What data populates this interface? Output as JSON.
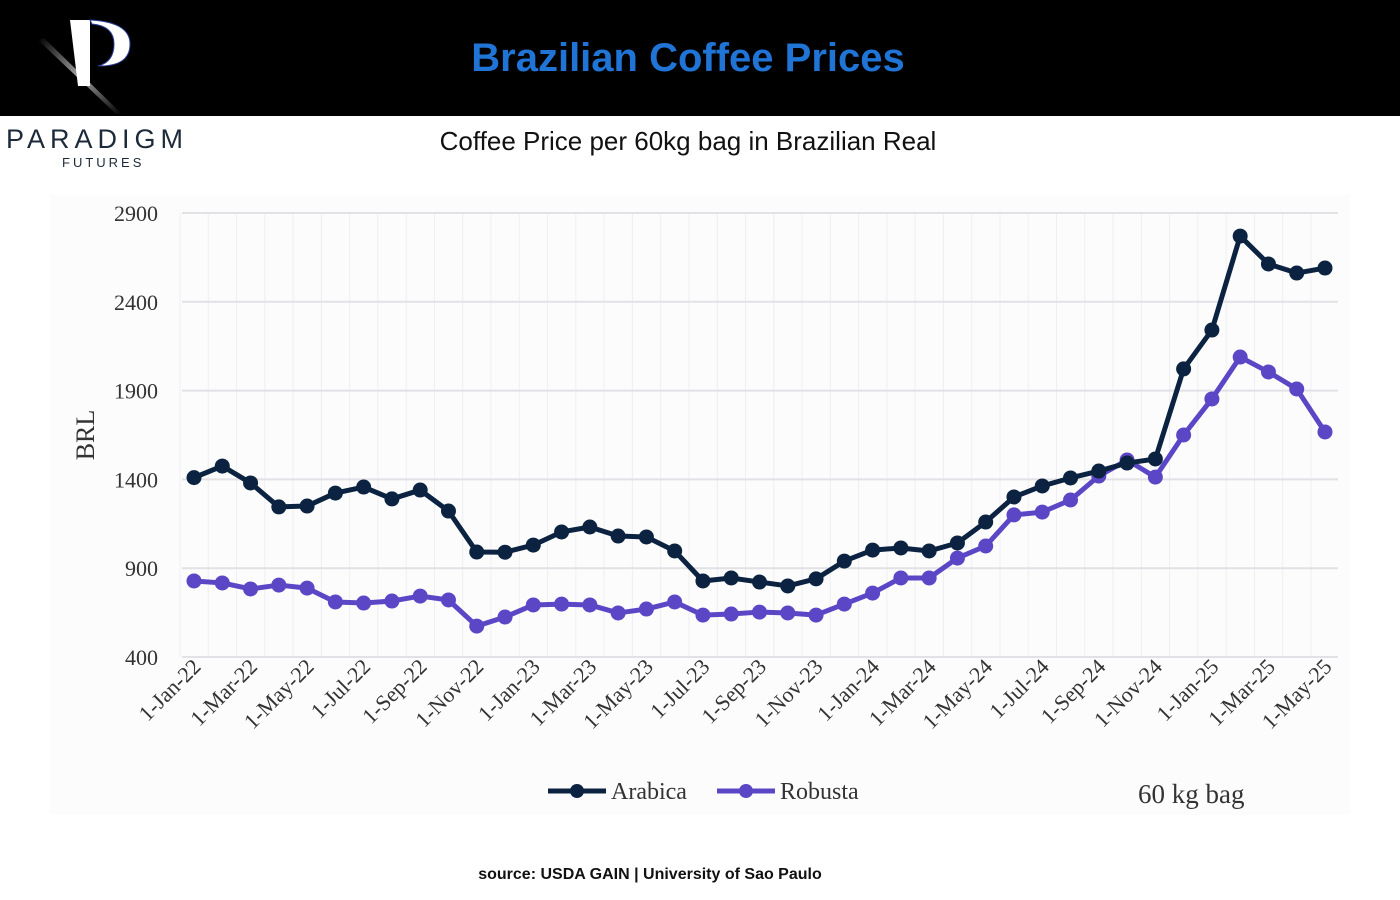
{
  "header": {
    "title": "Brazilian Coffee Prices"
  },
  "logo": {
    "brand": "PARADIGM",
    "sub": "FUTURES",
    "mark": "P"
  },
  "source": "source: USDA GAIN | University of Sao Paulo",
  "colors": {
    "title": "#1f74d6",
    "arabica": "#0b2340",
    "robusta": "#5b47c6"
  },
  "chart_data": {
    "type": "line",
    "title": "Coffee Price per 60kg bag in Brazilian Real",
    "ylabel": "BRL",
    "xlabel": "",
    "annotation": "60 kg bag",
    "ylim": [
      400,
      2900
    ],
    "yticks": [
      400,
      900,
      1400,
      1900,
      2400,
      2900
    ],
    "grid": true,
    "legend": "bottom",
    "x": [
      "1-Jan-22",
      "1-Feb-22",
      "1-Mar-22",
      "1-Apr-22",
      "1-May-22",
      "1-Jun-22",
      "1-Jul-22",
      "1-Aug-22",
      "1-Sep-22",
      "1-Oct-22",
      "1-Nov-22",
      "1-Dec-22",
      "1-Jan-23",
      "1-Feb-23",
      "1-Mar-23",
      "1-Apr-23",
      "1-May-23",
      "1-Jun-23",
      "1-Jul-23",
      "1-Aug-23",
      "1-Sep-23",
      "1-Oct-23",
      "1-Nov-23",
      "1-Dec-23",
      "1-Jan-24",
      "1-Feb-24",
      "1-Mar-24",
      "1-Apr-24",
      "1-May-24",
      "1-Jun-24",
      "1-Jul-24",
      "1-Aug-24",
      "1-Sep-24",
      "1-Oct-24",
      "1-Nov-24",
      "1-Dec-24",
      "1-Jan-25",
      "1-Feb-25",
      "1-Mar-25",
      "1-Apr-25",
      "1-May-25"
    ],
    "xtick_labels": [
      "1-Jan-22",
      "1-Mar-22",
      "1-May-22",
      "1-Jul-22",
      "1-Sep-22",
      "1-Nov-22",
      "1-Jan-23",
      "1-Mar-23",
      "1-May-23",
      "1-Jul-23",
      "1-Sep-23",
      "1-Nov-23",
      "1-Jan-24",
      "1-Mar-24",
      "1-May-24",
      "1-Jul-24",
      "1-Sep-24",
      "1-Nov-24",
      "1-Jan-25",
      "1-Mar-25",
      "1-May-25"
    ],
    "series": [
      {
        "name": "Arabica",
        "values": [
          1410,
          1475,
          1380,
          1245,
          1250,
          1323,
          1357,
          1290,
          1340,
          1222,
          991,
          990,
          1030,
          1104,
          1132,
          1081,
          1076,
          997,
          828,
          845,
          822,
          800,
          840,
          940,
          1002,
          1014,
          997,
          1042,
          1160,
          1301,
          1363,
          1408,
          1447,
          1492,
          1515,
          2022,
          2241,
          2770,
          2613,
          2562,
          2590
        ]
      },
      {
        "name": "Robusta",
        "values": [
          828,
          817,
          783,
          805,
          788,
          710,
          704,
          715,
          743,
          721,
          574,
          625,
          693,
          698,
          693,
          648,
          670,
          710,
          636,
          642,
          653,
          648,
          636,
          698,
          760,
          845,
          845,
          957,
          1025,
          1200,
          1216,
          1284,
          1419,
          1509,
          1413,
          1650,
          1853,
          2089,
          2005,
          1909,
          1667
        ]
      }
    ]
  }
}
